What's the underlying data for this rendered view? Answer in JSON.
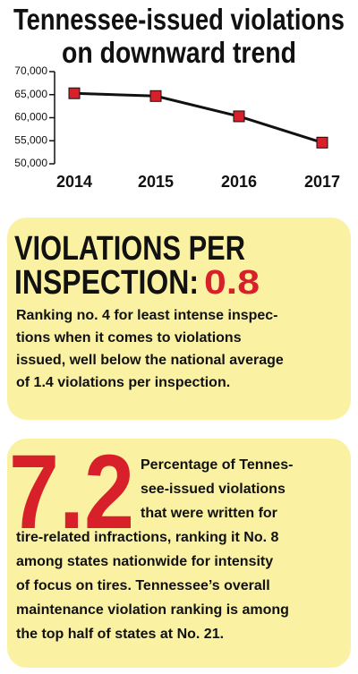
{
  "chart_data": {
    "type": "line",
    "title_lines": [
      "Tennessee-issued violations",
      "on downward trend"
    ],
    "categories": [
      "2014",
      "2015",
      "2016",
      "2017"
    ],
    "values": [
      65300,
      64700,
      60300,
      54600
    ],
    "color": "#d8202a",
    "line_color": "#111111",
    "ylim": [
      50000,
      70000
    ],
    "yticks": [
      {
        "value": 50000,
        "label": "50,000"
      },
      {
        "value": 55000,
        "label": "55,000"
      },
      {
        "value": 60000,
        "label": "60,000"
      },
      {
        "value": 65000,
        "label": "65,000"
      },
      {
        "value": 70000,
        "label": "70,000"
      }
    ]
  },
  "box1": {
    "heading_lines": [
      "VIOLATIONS PER",
      "INSPECTION:"
    ],
    "figure": "0.8",
    "lines": [
      "Ranking no. 4 for least intense inspec-",
      "tions when it comes to violations",
      "issued, well below the national average",
      "of 1.4 violations per inspection."
    ]
  },
  "box2": {
    "figure": "7.2",
    "lines": [
      "Percentage of Tennes-",
      "see-issued violations",
      "that were written for",
      "tire-related infractions, ranking it No. 8",
      "among states nationwide for intensity",
      "of focus on tires. Tennessee’s overall",
      "maintenance violation ranking is among",
      "the top half of states at No. 21."
    ]
  }
}
